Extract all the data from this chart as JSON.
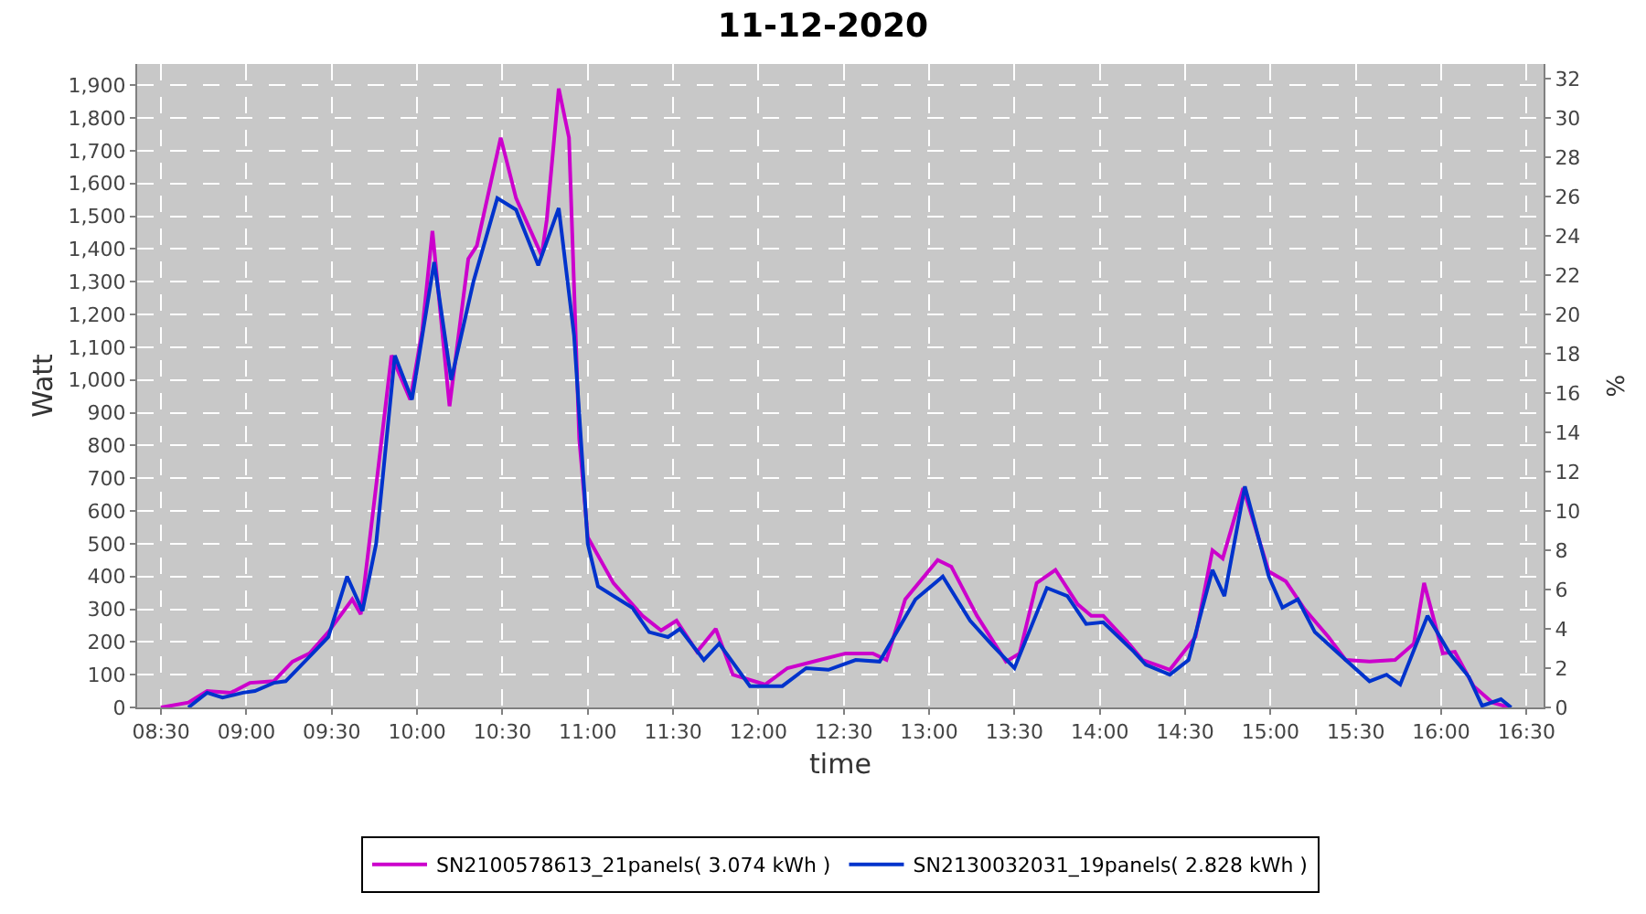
{
  "chart_data": {
    "type": "line",
    "title": "11-12-2020",
    "xlabel": "time",
    "ylabel": "Watt",
    "y2label": "%",
    "xlim": [
      8.36,
      16.6
    ],
    "xticks": [
      {
        "value": 8.5,
        "label": "08:30"
      },
      {
        "value": 9,
        "label": "09:00"
      },
      {
        "value": 9.5,
        "label": "09:30"
      },
      {
        "value": 10,
        "label": "10:00"
      },
      {
        "value": 10.5,
        "label": "10:30"
      },
      {
        "value": 11,
        "label": "11:00"
      },
      {
        "value": 11.5,
        "label": "11:30"
      },
      {
        "value": 12,
        "label": "12:00"
      },
      {
        "value": 12.5,
        "label": "12:30"
      },
      {
        "value": 13,
        "label": "13:00"
      },
      {
        "value": 13.5,
        "label": "13:30"
      },
      {
        "value": 14,
        "label": "14:00"
      },
      {
        "value": 14.5,
        "label": "14:30"
      },
      {
        "value": 15,
        "label": "15:00"
      },
      {
        "value": 15.5,
        "label": "15:30"
      },
      {
        "value": 16,
        "label": "16:00"
      },
      {
        "value": 16.5,
        "label": "16:30"
      }
    ],
    "ylim": [
      0,
      1965
    ],
    "yticks": [
      0,
      100,
      200,
      300,
      400,
      500,
      600,
      700,
      800,
      900,
      {
        "value": 1000,
        "label": "1,000"
      },
      {
        "value": 1100,
        "label": "1,100"
      },
      {
        "value": 1200,
        "label": "1,200"
      },
      {
        "value": 1300,
        "label": "1,300"
      },
      {
        "value": 1400,
        "label": "1,400"
      },
      {
        "value": 1500,
        "label": "1,500"
      },
      {
        "value": 1600,
        "label": "1,600"
      },
      {
        "value": 1700,
        "label": "1,700"
      },
      {
        "value": 1800,
        "label": "1,800"
      },
      {
        "value": 1900,
        "label": "1,900"
      }
    ],
    "y2lim": [
      0,
      32.75
    ],
    "y2ticks": [
      0,
      2,
      4,
      6,
      8,
      10,
      12,
      14,
      16,
      18,
      20,
      22,
      24,
      26,
      28,
      30,
      32
    ],
    "grid": true,
    "legend": "bottom",
    "marker": "none",
    "line_style": "solid",
    "series": [
      {
        "name": "SN2100578613_21panels( 3.074 kWh )",
        "color": "#cc00cc",
        "x": [
          8.5,
          8.66,
          8.77,
          8.91,
          9.02,
          9.16,
          9.27,
          9.37,
          9.48,
          9.62,
          9.67,
          9.77,
          9.85,
          9.96,
          10.03,
          10.09,
          10.19,
          10.3,
          10.35,
          10.49,
          10.58,
          10.73,
          10.76,
          10.83,
          10.89,
          10.95,
          11.0,
          11.15,
          11.32,
          11.43,
          11.52,
          11.64,
          11.75,
          11.85,
          12.04,
          12.17,
          12.36,
          12.51,
          12.67,
          12.75,
          12.86,
          13.05,
          13.13,
          13.28,
          13.45,
          13.53,
          13.63,
          13.74,
          13.87,
          13.95,
          14.02,
          14.17,
          14.25,
          14.41,
          14.56,
          14.66,
          14.72,
          14.84,
          14.99,
          15.09,
          15.2,
          15.34,
          15.44,
          15.58,
          15.73,
          15.84,
          15.9,
          16.01,
          16.08,
          16.19,
          16.3,
          16.4
        ],
        "values": [
          0,
          15,
          50,
          45,
          75,
          80,
          140,
          165,
          230,
          330,
          285,
          720,
          1075,
          940,
          1150,
          1455,
          920,
          1370,
          1410,
          1740,
          1555,
          1380,
          1490,
          1890,
          1740,
          820,
          520,
          380,
          280,
          235,
          265,
          170,
          240,
          100,
          70,
          120,
          145,
          165,
          165,
          145,
          330,
          450,
          430,
          280,
          140,
          165,
          380,
          420,
          315,
          280,
          280,
          195,
          145,
          115,
          215,
          480,
          455,
          670,
          415,
          385,
          300,
          215,
          145,
          140,
          145,
          195,
          380,
          165,
          170,
          65,
          15,
          0
        ]
      },
      {
        "name": "SN2130032031_19panels( 2.828 kWh )",
        "color": "#0033cc",
        "x": [
          8.66,
          8.77,
          8.86,
          8.98,
          9.05,
          9.16,
          9.23,
          9.37,
          9.48,
          9.59,
          9.68,
          9.76,
          9.87,
          9.97,
          10.1,
          10.2,
          10.33,
          10.47,
          10.58,
          10.71,
          10.83,
          10.92,
          11.0,
          11.06,
          11.26,
          11.36,
          11.47,
          11.54,
          11.68,
          11.77,
          11.95,
          12.14,
          12.28,
          12.41,
          12.57,
          12.71,
          12.92,
          13.08,
          13.24,
          13.37,
          13.5,
          13.69,
          13.81,
          13.92,
          14.02,
          14.2,
          14.27,
          14.41,
          14.52,
          14.66,
          14.73,
          14.85,
          14.99,
          15.07,
          15.16,
          15.26,
          15.44,
          15.58,
          15.68,
          15.76,
          15.92,
          16.05,
          16.16,
          16.24,
          16.35,
          16.41
        ],
        "values": [
          0,
          45,
          30,
          45,
          50,
          75,
          80,
          155,
          215,
          400,
          295,
          500,
          1075,
          940,
          1360,
          1000,
          1300,
          1555,
          1520,
          1350,
          1525,
          1135,
          500,
          370,
          305,
          230,
          215,
          240,
          145,
          195,
          65,
          65,
          120,
          115,
          145,
          140,
          330,
          400,
          265,
          190,
          120,
          365,
          340,
          255,
          260,
          170,
          130,
          100,
          145,
          420,
          340,
          675,
          400,
          305,
          330,
          230,
          145,
          80,
          100,
          70,
          280,
          165,
          95,
          5,
          25,
          0
        ]
      }
    ]
  }
}
